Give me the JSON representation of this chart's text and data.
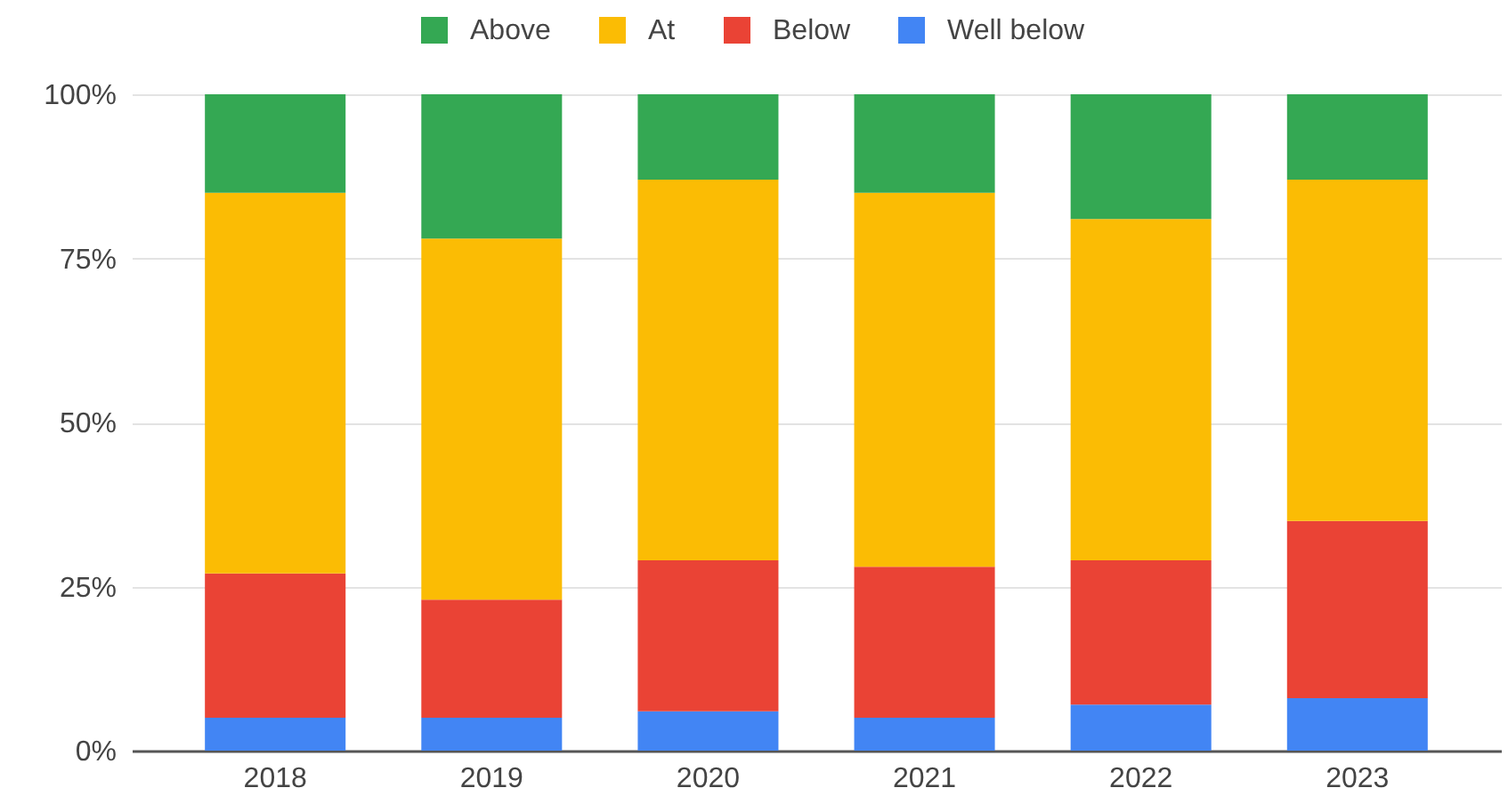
{
  "chart_data": {
    "type": "bar",
    "stacked": true,
    "categories": [
      "2018",
      "2019",
      "2020",
      "2021",
      "2022",
      "2023"
    ],
    "series": [
      {
        "name": "Well below",
        "color": "#4285f4",
        "values": [
          5,
          5,
          6,
          5,
          7,
          8
        ]
      },
      {
        "name": "Below",
        "color": "#ea4335",
        "values": [
          22,
          18,
          23,
          23,
          22,
          27
        ]
      },
      {
        "name": "At",
        "color": "#fbbc04",
        "values": [
          58,
          55,
          58,
          57,
          52,
          52
        ]
      },
      {
        "name": "Above",
        "color": "#34a853",
        "values": [
          15,
          22,
          13,
          15,
          19,
          13
        ]
      }
    ],
    "ylim": [
      0,
      100
    ],
    "yticks": [
      {
        "value": 0,
        "label": "0%"
      },
      {
        "value": 25,
        "label": "25%"
      },
      {
        "value": 50,
        "label": "50%"
      },
      {
        "value": 75,
        "label": "75%"
      },
      {
        "value": 100,
        "label": "100%"
      }
    ],
    "grid": "y",
    "legend": "top"
  }
}
